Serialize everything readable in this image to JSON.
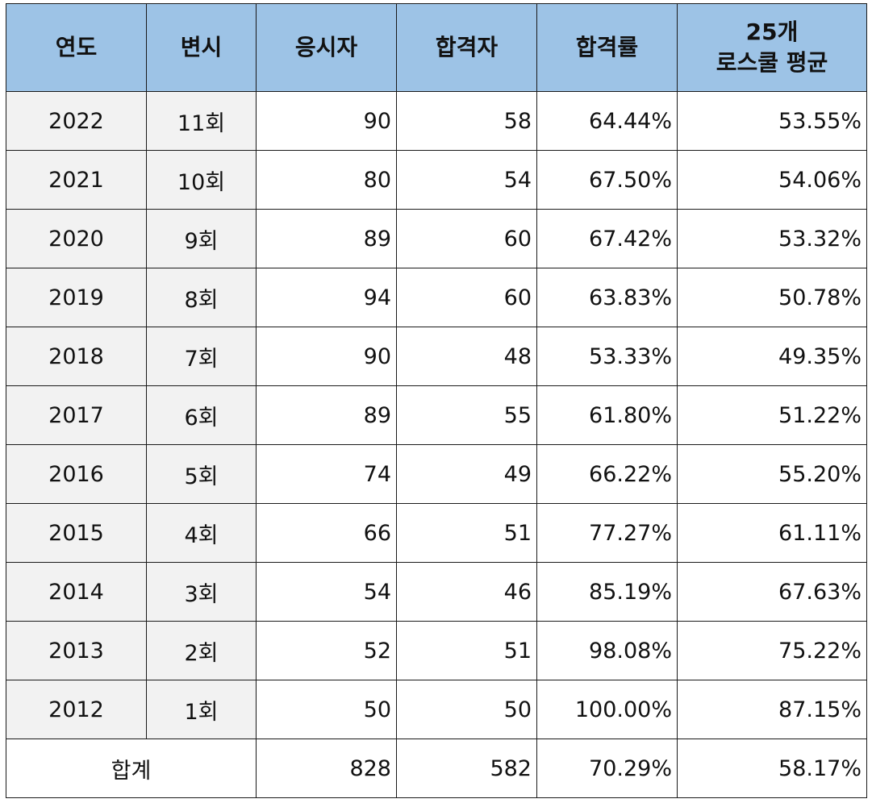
{
  "table": {
    "headers": {
      "year": "연도",
      "exam": "변시",
      "applicants": "응시자",
      "passers": "합격자",
      "pass_rate": "합격률",
      "avg_line1": "25개",
      "avg_line2": "로스쿨 평균"
    },
    "rows": [
      {
        "year": "2022",
        "exam": "11회",
        "applicants": "90",
        "passers": "58",
        "pass_rate": "64.44%",
        "avg": "53.55%"
      },
      {
        "year": "2021",
        "exam": "10회",
        "applicants": "80",
        "passers": "54",
        "pass_rate": "67.50%",
        "avg": "54.06%"
      },
      {
        "year": "2020",
        "exam": "9회",
        "applicants": "89",
        "passers": "60",
        "pass_rate": "67.42%",
        "avg": "53.32%"
      },
      {
        "year": "2019",
        "exam": "8회",
        "applicants": "94",
        "passers": "60",
        "pass_rate": "63.83%",
        "avg": "50.78%"
      },
      {
        "year": "2018",
        "exam": "7회",
        "applicants": "90",
        "passers": "48",
        "pass_rate": "53.33%",
        "avg": "49.35%"
      },
      {
        "year": "2017",
        "exam": "6회",
        "applicants": "89",
        "passers": "55",
        "pass_rate": "61.80%",
        "avg": "51.22%"
      },
      {
        "year": "2016",
        "exam": "5회",
        "applicants": "74",
        "passers": "49",
        "pass_rate": "66.22%",
        "avg": "55.20%"
      },
      {
        "year": "2015",
        "exam": "4회",
        "applicants": "66",
        "passers": "51",
        "pass_rate": "77.27%",
        "avg": "61.11%"
      },
      {
        "year": "2014",
        "exam": "3회",
        "applicants": "54",
        "passers": "46",
        "pass_rate": "85.19%",
        "avg": "67.63%"
      },
      {
        "year": "2013",
        "exam": "2회",
        "applicants": "52",
        "passers": "51",
        "pass_rate": "98.08%",
        "avg": "75.22%"
      },
      {
        "year": "2012",
        "exam": "1회",
        "applicants": "50",
        "passers": "50",
        "pass_rate": "100.00%",
        "avg": "87.15%"
      }
    ],
    "total": {
      "label": "합계",
      "applicants": "828",
      "passers": "582",
      "pass_rate": "70.29%",
      "avg": "58.17%"
    },
    "colors": {
      "header_bg": "#9dc3e6",
      "label_cell_bg": "#f2f2f2",
      "border": "#1a1a1a"
    }
  }
}
